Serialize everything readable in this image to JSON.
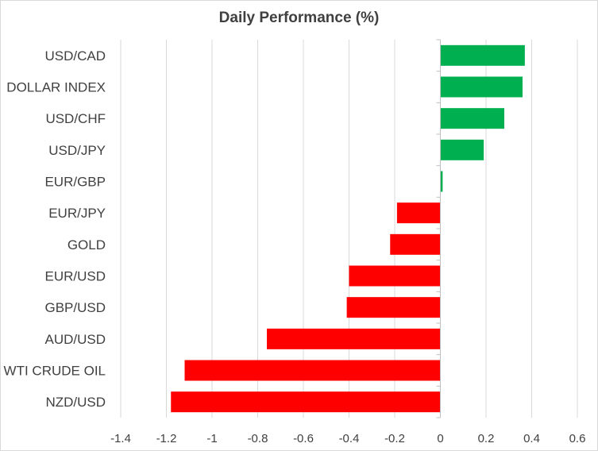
{
  "chart_data": {
    "type": "bar",
    "orientation": "horizontal",
    "title": "Daily Performance  (%)",
    "xlabel": "",
    "ylabel": "",
    "xlim": [
      -1.4,
      0.6
    ],
    "xticks": [
      -1.4,
      -1.2,
      -1,
      -0.8,
      -0.6,
      -0.4,
      -0.2,
      0,
      0.2,
      0.4,
      0.6
    ],
    "xtick_labels": [
      "-1.4",
      "-1.2",
      "-1",
      "-0.8",
      "-0.6",
      "-0.4",
      "-0.2",
      "0",
      "0.2",
      "0.4",
      "0.6"
    ],
    "grid": true,
    "legend": "none",
    "colors": {
      "positive": "#00b050",
      "negative": "#ff0000",
      "grid": "#d9d9d9",
      "axis": "#bfbfbf"
    },
    "categories": [
      "USD/CAD",
      "DOLLAR INDEX",
      "USD/CHF",
      "USD/JPY",
      "EUR/GBP",
      "EUR/JPY",
      "GOLD",
      "EUR/USD",
      "GBP/USD",
      "AUD/USD",
      "WTI CRUDE OIL",
      "NZD/USD"
    ],
    "values": [
      0.37,
      0.36,
      0.28,
      0.19,
      0.01,
      -0.19,
      -0.22,
      -0.4,
      -0.41,
      -0.76,
      -1.12,
      -1.18
    ]
  }
}
